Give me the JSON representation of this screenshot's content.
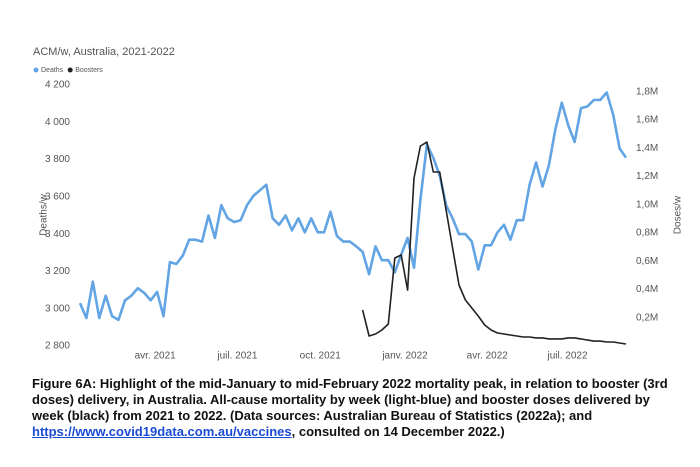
{
  "chart_data": {
    "type": "line",
    "title": "ACM/w, Australia, 2021-2022",
    "ylabel": "Deaths/w",
    "y2label": "Doses/w",
    "x": [
      1,
      2,
      3,
      4,
      5,
      6,
      7,
      8,
      9,
      10,
      11,
      12,
      13,
      14,
      15,
      16,
      17,
      18,
      19,
      20,
      21,
      22,
      23,
      24,
      25,
      26,
      27,
      28,
      29,
      30,
      31,
      32,
      33,
      34,
      35,
      36,
      37,
      38,
      39,
      40,
      41,
      42,
      43,
      44,
      45,
      46,
      47,
      48,
      49,
      50,
      51,
      52,
      53,
      54,
      55,
      56,
      57,
      58,
      59,
      60,
      61,
      62,
      63,
      64,
      65,
      66,
      67,
      68,
      69,
      70,
      71,
      72,
      73,
      74,
      75,
      76,
      77,
      78,
      79,
      80,
      81,
      82,
      83,
      84,
      85,
      86
    ],
    "xlim": [
      1,
      86
    ],
    "xticks": [
      {
        "value": 12.7,
        "label": "avr. 2021"
      },
      {
        "value": 25.5,
        "label": "juil. 2021"
      },
      {
        "value": 38.4,
        "label": "oct. 2021"
      },
      {
        "value": 51.6,
        "label": "janv. 2022"
      },
      {
        "value": 64.4,
        "label": "avr. 2022"
      },
      {
        "value": 76.9,
        "label": "juil. 2022"
      }
    ],
    "ylim": [
      2800,
      4200
    ],
    "yticks": [
      {
        "value": 2800,
        "label": "2 800"
      },
      {
        "value": 3000,
        "label": "3 000"
      },
      {
        "value": 3200,
        "label": "3 200"
      },
      {
        "value": 3400,
        "label": "3 400"
      },
      {
        "value": 3600,
        "label": "3 600"
      },
      {
        "value": 3800,
        "label": "3 800"
      },
      {
        "value": 4000,
        "label": "4 000"
      },
      {
        "value": 4200,
        "label": "4 200"
      }
    ],
    "y2lim": [
      0,
      1848000
    ],
    "y2ticks": [
      {
        "value": 200000,
        "label": "0,2M"
      },
      {
        "value": 400000,
        "label": "0,4M"
      },
      {
        "value": 600000,
        "label": "0,6M"
      },
      {
        "value": 800000,
        "label": "0,8M"
      },
      {
        "value": 1000000,
        "label": "1,0M"
      },
      {
        "value": 1200000,
        "label": "1,2M"
      },
      {
        "value": 1400000,
        "label": "1,4M"
      },
      {
        "value": 1600000,
        "label": "1,6M"
      },
      {
        "value": 1800000,
        "label": "1,8M"
      }
    ],
    "series": [
      {
        "name": "Deaths",
        "color": "#62a4e4",
        "values": [
          3030,
          2950,
          3145,
          2950,
          3070,
          2960,
          2940,
          3045,
          3070,
          3110,
          3085,
          3045,
          3090,
          2960,
          3250,
          3240,
          3285,
          3370,
          3370,
          3360,
          3500,
          3380,
          3555,
          3485,
          3465,
          3475,
          3555,
          3605,
          3635,
          3665,
          3485,
          3450,
          3500,
          3420,
          3485,
          3410,
          3485,
          3410,
          3410,
          3520,
          3390,
          3360,
          3360,
          3335,
          3305,
          3185,
          3335,
          3260,
          3260,
          3195,
          3290,
          3380,
          3220,
          3585,
          3880,
          3810,
          3715,
          3555,
          3485,
          3400,
          3400,
          3360,
          3210,
          3340,
          3340,
          3410,
          3450,
          3370,
          3475,
          3475,
          3665,
          3785,
          3655,
          3770,
          3960,
          4105,
          3985,
          3895,
          4075,
          4085,
          4120,
          4120,
          4160,
          4040,
          3860,
          3810
        ]
      },
      {
        "name": "Boosters",
        "color": "#222222",
        "axis": "y2",
        "values": [
          null,
          null,
          null,
          null,
          null,
          null,
          null,
          null,
          null,
          null,
          null,
          null,
          null,
          null,
          null,
          null,
          null,
          null,
          null,
          null,
          null,
          null,
          null,
          null,
          null,
          null,
          null,
          null,
          null,
          null,
          null,
          null,
          null,
          null,
          null,
          null,
          null,
          null,
          null,
          null,
          null,
          null,
          null,
          null,
          255000,
          71000,
          85000,
          113000,
          156000,
          623000,
          644000,
          396000,
          1189000,
          1416000,
          1444000,
          1232000,
          1232000,
          963000,
          694000,
          432000,
          326000,
          269000,
          212000,
          149000,
          113000,
          92000,
          85000,
          78000,
          71000,
          64000,
          64000,
          57000,
          57000,
          50000,
          50000,
          50000,
          57000,
          57000,
          50000,
          42000,
          35000,
          35000,
          28000,
          28000,
          21000,
          14000
        ]
      }
    ]
  },
  "caption": {
    "text": "Figure 6A: Highlight of the mid-January to mid-February 2022 mortality peak, in relation to booster (3rd doses) delivery, in Australia. All-cause mortality by week (light-blue) and booster doses delivered by week (black) from 2021 to 2022. (Data sources: Australian Bureau of Statistics (2022a); and ",
    "link": "https://www.covid19data.com.au/vaccines",
    "text_end": ", consulted on 14 December 2022.)"
  }
}
